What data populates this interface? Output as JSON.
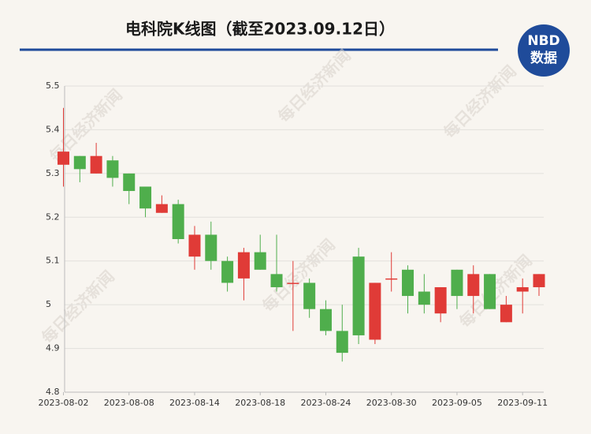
{
  "chart_data": {
    "type": "candlestick",
    "title": "电科院K线图（截至2023.09.12日）",
    "logo": {
      "top": "NBD",
      "bottom": "数据"
    },
    "watermark": "每日经济新闻",
    "categories": [
      "2023-08-02",
      null,
      null,
      null,
      "2023-08-08",
      null,
      null,
      null,
      "2023-08-14",
      null,
      null,
      null,
      "2023-08-18",
      null,
      null,
      null,
      "2023-08-24",
      null,
      null,
      null,
      "2023-08-30",
      null,
      null,
      null,
      "2023-09-05",
      null,
      null,
      null,
      "2023-09-11",
      null
    ],
    "open": [
      5.32,
      5.34,
      5.3,
      5.33,
      5.3,
      5.27,
      5.21,
      5.23,
      5.11,
      5.16,
      5.1,
      5.06,
      5.12,
      5.07,
      5.05,
      5.05,
      4.99,
      4.94,
      5.11,
      4.92,
      5.06,
      5.08,
      5.03,
      4.98,
      5.08,
      5.02,
      5.07,
      4.96,
      5.03,
      5.04
    ],
    "high": [
      5.45,
      5.34,
      5.37,
      5.34,
      5.3,
      5.27,
      5.25,
      5.24,
      5.18,
      5.19,
      5.11,
      5.13,
      5.16,
      5.16,
      5.1,
      5.06,
      5.01,
      5.0,
      5.13,
      5.05,
      5.12,
      5.09,
      5.07,
      5.04,
      5.08,
      5.09,
      5.07,
      5.02,
      5.06,
      5.07
    ],
    "low": [
      5.27,
      5.28,
      5.3,
      5.27,
      5.23,
      5.2,
      5.21,
      5.14,
      5.08,
      5.08,
      5.03,
      5.01,
      5.08,
      5.03,
      4.94,
      4.97,
      4.93,
      4.87,
      4.91,
      4.91,
      5.03,
      4.98,
      4.98,
      4.96,
      4.99,
      4.98,
      4.99,
      4.96,
      4.98,
      5.02
    ],
    "close": [
      5.35,
      5.31,
      5.34,
      5.29,
      5.26,
      5.22,
      5.23,
      5.15,
      5.16,
      5.1,
      5.05,
      5.12,
      5.08,
      5.04,
      5.05,
      4.99,
      4.94,
      4.89,
      4.93,
      5.05,
      5.06,
      5.02,
      5.0,
      5.04,
      5.02,
      5.07,
      4.99,
      5.0,
      5.04,
      5.07
    ],
    "up_color": "#e03b37",
    "down_color": "#4fae4c",
    "ylim": [
      4.8,
      5.5
    ],
    "yticks": [
      4.8,
      4.9,
      5,
      5.1,
      5.2,
      5.3,
      5.4,
      5.5
    ],
    "grid": true
  }
}
